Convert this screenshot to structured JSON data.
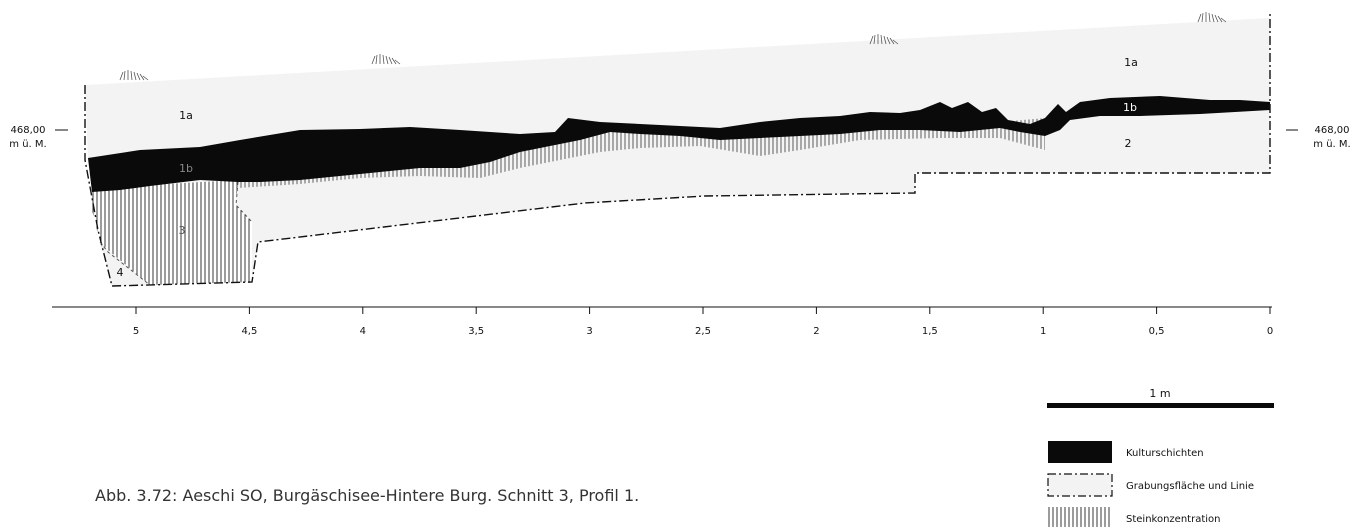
{
  "profile": {
    "left_elevation": "468,00",
    "left_unit": "m ü. M.",
    "right_elevation": "468,00",
    "right_unit": "m ü. M.",
    "layers": {
      "1a_left": "1a",
      "1a_right": "1a",
      "1b_left": "1b",
      "1b_right": "1b",
      "2": "2",
      "3": "3",
      "4": "4"
    }
  },
  "axis": {
    "ticks": [
      "5",
      "4,5",
      "4",
      "3,5",
      "3",
      "2,5",
      "2",
      "1,5",
      "1",
      "0,5",
      "0"
    ]
  },
  "scale_bar": {
    "label": "1 m"
  },
  "legend": [
    {
      "key": "culture",
      "label": "Kulturschichten"
    },
    {
      "key": "excavation",
      "label": "Grabungsfläche und Linie"
    },
    {
      "key": "stone",
      "label": "Steinkonzentration"
    }
  ],
  "caption": "Abb. 3.72: Aeschi SO, Burgäschisee-Hintere Burg. Schnitt 3, Profil 1."
}
